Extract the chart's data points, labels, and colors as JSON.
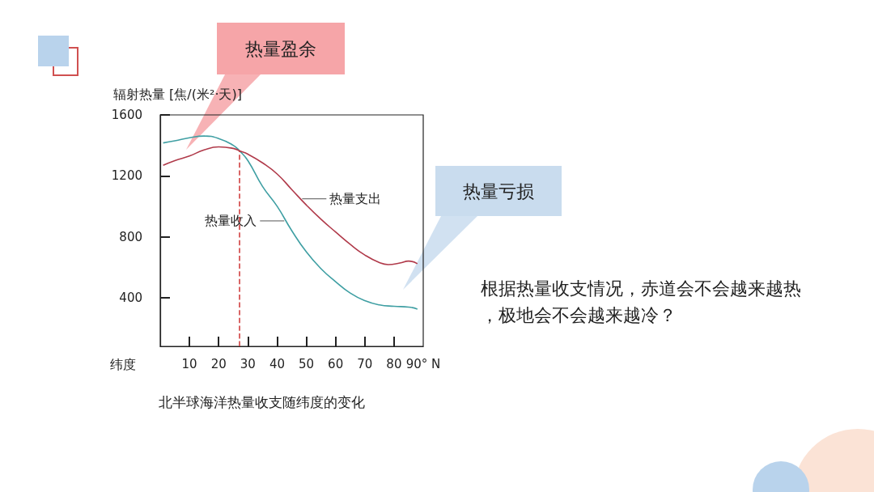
{
  "chart_data": {
    "type": "line",
    "ylabel": "辐射热量 [焦/(米²·天)]",
    "xlabel": "纬度",
    "xlim": [
      0,
      90
    ],
    "xticks": [
      10,
      20,
      30,
      40,
      50,
      60,
      70,
      80,
      {
        "value": 90,
        "label": "90° N"
      }
    ],
    "ylim": [
      80,
      1600
    ],
    "yticks": [
      400,
      800,
      1200,
      1600
    ],
    "series": [
      {
        "name": "热量收入",
        "color": "#3f9fa3",
        "x": [
          1,
          5,
          10,
          15,
          20,
          25,
          27.2,
          30,
          35,
          40,
          45,
          50,
          55,
          60,
          65,
          70,
          75,
          80,
          85,
          88
        ],
        "values": [
          1416,
          1430,
          1450,
          1461,
          1445,
          1400,
          1363,
          1300,
          1130,
          1000,
          840,
          700,
          590,
          505,
          430,
          380,
          352,
          343,
          338,
          325
        ]
      },
      {
        "name": "热量支出",
        "color": "#b03a4a",
        "x": [
          1,
          5,
          10,
          15,
          20,
          25,
          27.2,
          30,
          35,
          40,
          45,
          50,
          55,
          60,
          65,
          70,
          75,
          78,
          82,
          85,
          88
        ],
        "values": [
          1269,
          1300,
          1330,
          1370,
          1390,
          1380,
          1363,
          1342,
          1285,
          1212,
          1110,
          1008,
          915,
          831,
          750,
          680,
          630,
          617,
          627,
          640,
          623
        ]
      }
    ],
    "ref_lines": [
      {
        "axis": "x",
        "value": 27.2,
        "color": "#d04040",
        "line_style": "dashed"
      }
    ],
    "annotations": [
      "热量盈余",
      "热量亏损",
      "根据热量收支情况，赤道会不会越来越热，极地会不会越来越冷？",
      "北半球海洋热量收支随纬度的变化"
    ],
    "grid": false,
    "legend": false,
    "marker": "none",
    "line_style": "solid"
  }
}
